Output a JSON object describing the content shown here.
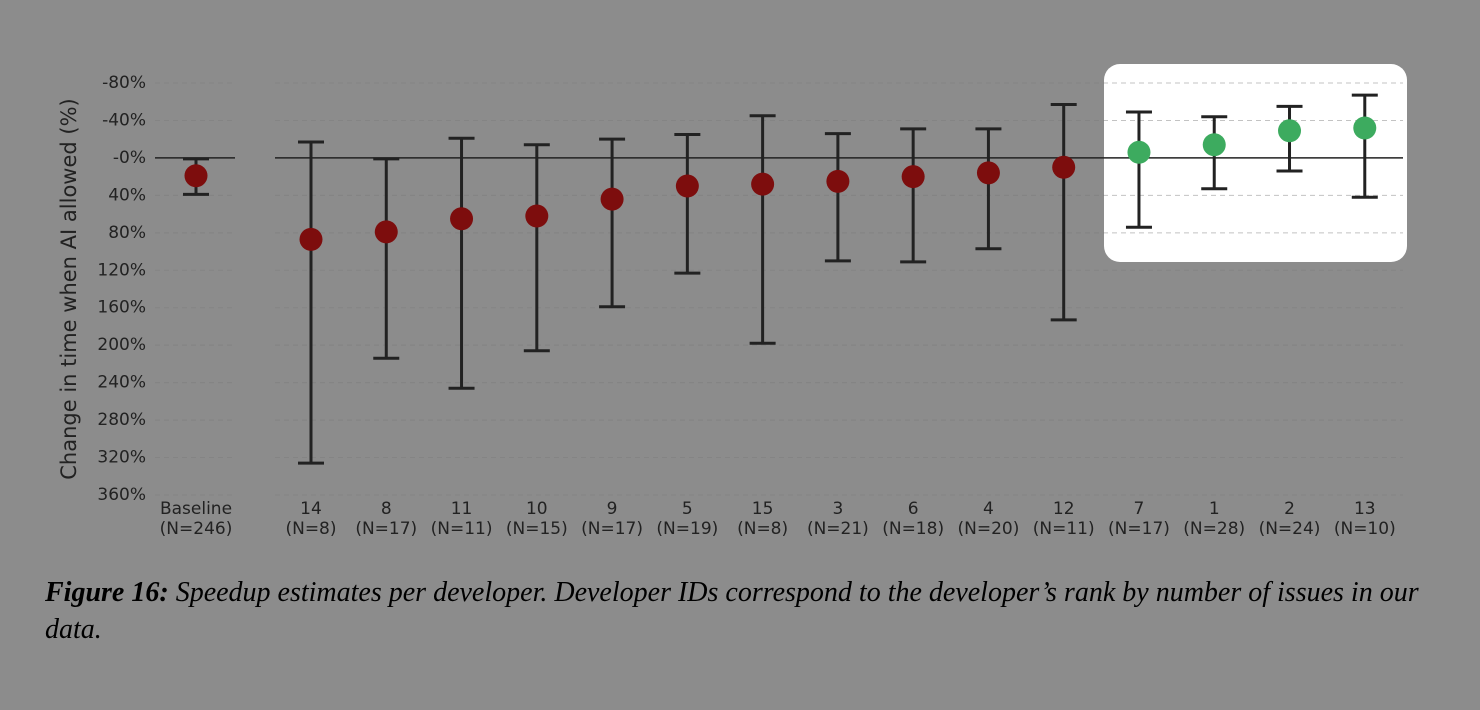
{
  "chart_data": {
    "type": "errorbar_points",
    "y_label": "Change in time when AI allowed (%)",
    "categories": [
      "Baseline",
      "14",
      "8",
      "11",
      "10",
      "9",
      "5",
      "15",
      "3",
      "6",
      "4",
      "12",
      "7",
      "1",
      "2",
      "13"
    ],
    "n_labels": [
      "(N=246)",
      "(N=8)",
      "(N=17)",
      "(N=11)",
      "(N=15)",
      "(N=17)",
      "(N=19)",
      "(N=8)",
      "(N=21)",
      "(N=18)",
      "(N=20)",
      "(N=11)",
      "(N=17)",
      "(N=28)",
      "(N=24)",
      "(N=10)"
    ],
    "values": [
      19,
      87,
      79,
      65,
      62,
      44,
      30,
      28,
      25,
      20,
      16,
      10,
      -6,
      -14,
      -29,
      -32
    ],
    "lower": [
      1,
      -17,
      1,
      -21,
      -14,
      -20,
      -25,
      -45,
      -26,
      -31,
      -31,
      -57,
      -49,
      -44,
      -55,
      -67
    ],
    "upper": [
      39,
      326,
      214,
      246,
      206,
      159,
      123,
      198,
      110,
      111,
      97,
      173,
      74,
      33,
      14,
      42
    ],
    "colors": [
      "#7d0d0d",
      "#7d0d0d",
      "#7d0d0d",
      "#7d0d0d",
      "#7d0d0d",
      "#7d0d0d",
      "#7d0d0d",
      "#7d0d0d",
      "#7d0d0d",
      "#7d0d0d",
      "#7d0d0d",
      "#7d0d0d",
      "#3dab5f",
      "#3dab5f",
      "#3dab5f",
      "#3dab5f"
    ],
    "ylim": [
      -80,
      360
    ],
    "y_inverted": true,
    "yticks": [
      {
        "value": -80,
        "label": "-80%"
      },
      {
        "value": -40,
        "label": "-40%"
      },
      {
        "value": 0,
        "label": "-0%"
      },
      {
        "value": 40,
        "label": "40%"
      },
      {
        "value": 80,
        "label": "80%"
      },
      {
        "value": 120,
        "label": "120%"
      },
      {
        "value": 160,
        "label": "160%"
      },
      {
        "value": 200,
        "label": "200%"
      },
      {
        "value": 240,
        "label": "240%"
      },
      {
        "value": 280,
        "label": "280%"
      },
      {
        "value": 320,
        "label": "320%"
      },
      {
        "value": 360,
        "label": "360%"
      }
    ],
    "grid": true
  },
  "caption": {
    "label": "Figure 16:",
    "text": "Speedup estimates per developer. Developer IDs correspond to the developer’s rank by number of issues in our data."
  }
}
